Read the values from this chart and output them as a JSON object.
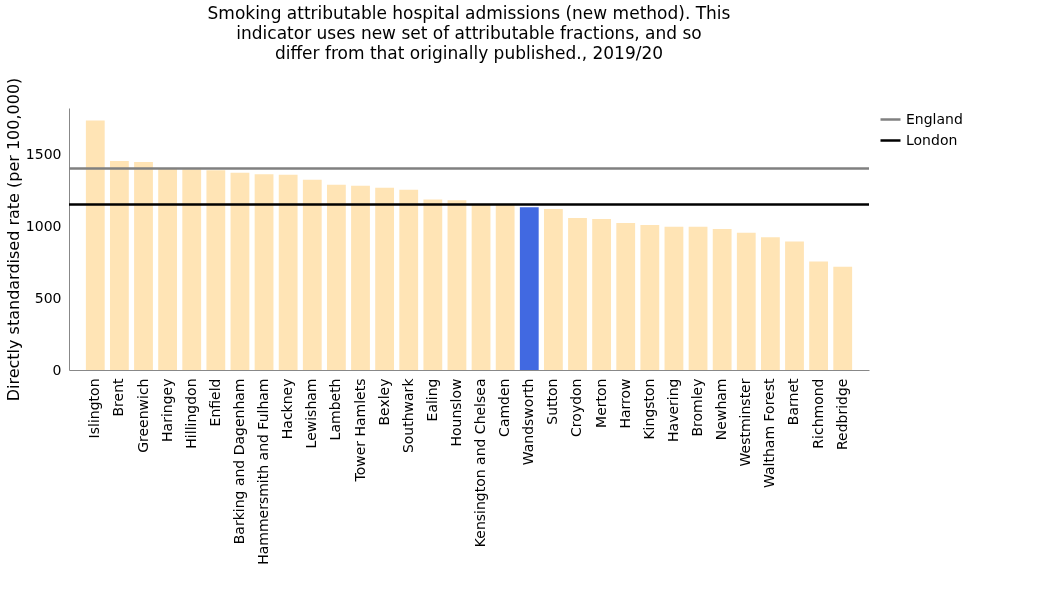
{
  "chart_data": {
    "type": "bar",
    "title": "Smoking attributable hospital admissions (new method). This indicator uses new set of attributable fractions, and so differ from that originally published., 2019/20",
    "ylabel": "Directly standardised rate (per 100,000)",
    "categories": [
      "Islington",
      "Brent",
      "Greenwich",
      "Haringey",
      "Hillingdon",
      "Enfield",
      "Barking and Dagenham",
      "Hammersmith and Fulham",
      "Hackney",
      "Lewisham",
      "Lambeth",
      "Tower Hamlets",
      "Bexley",
      "Southwark",
      "Ealing",
      "Hounslow",
      "Kensington and Chelsea",
      "Camden",
      "Wandsworth",
      "Sutton",
      "Croydon",
      "Merton",
      "Harrow",
      "Kingston",
      "Havering",
      "Bromley",
      "Newham",
      "Westminster",
      "Waltham Forest",
      "Barnet",
      "Richmond",
      "Redbridge"
    ],
    "values": [
      1734,
      1452,
      1445,
      1400,
      1395,
      1387,
      1371,
      1359,
      1357,
      1322,
      1287,
      1280,
      1266,
      1252,
      1184,
      1179,
      1150,
      1148,
      1131,
      1119,
      1056,
      1049,
      1021,
      1007,
      995,
      995,
      979,
      953,
      923,
      893,
      753,
      718
    ],
    "colors": [
      "#ffe4b5",
      "#ffe4b5",
      "#ffe4b5",
      "#ffe4b5",
      "#ffe4b5",
      "#ffe4b5",
      "#ffe4b5",
      "#ffe4b5",
      "#ffe4b5",
      "#ffe4b5",
      "#ffe4b5",
      "#ffe4b5",
      "#ffe4b5",
      "#ffe4b5",
      "#ffe4b5",
      "#ffe4b5",
      "#ffe4b5",
      "#ffe4b5",
      "#4169e1",
      "#ffe4b5",
      "#ffe4b5",
      "#ffe4b5",
      "#ffe4b5",
      "#ffe4b5",
      "#ffe4b5",
      "#ffe4b5",
      "#ffe4b5",
      "#ffe4b5",
      "#ffe4b5",
      "#ffe4b5",
      "#ffe4b5",
      "#ffe4b5"
    ],
    "ylim": [
      0,
      1820
    ],
    "yticks": [
      0,
      500,
      1000,
      1500
    ],
    "grid": false,
    "legend": "right",
    "ref_lines": [
      {
        "axis": "y",
        "value": 1400,
        "label": "England",
        "color": "#808080"
      },
      {
        "axis": "y",
        "value": 1150,
        "label": "London",
        "color": "#000000"
      }
    ]
  }
}
